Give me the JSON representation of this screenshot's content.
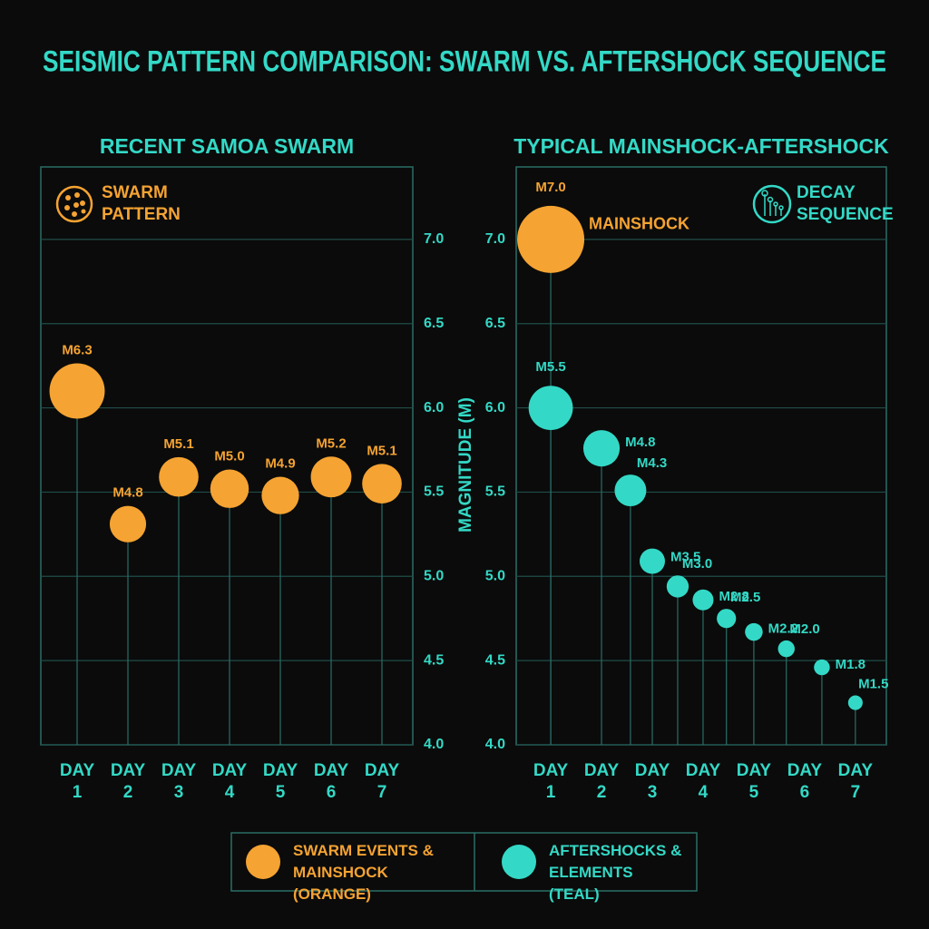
{
  "title": "SEISMIC PATTERN COMPARISON: SWARM VS. AFTERSHOCK SEQUENCE",
  "chart_data": [
    {
      "type": "bubble",
      "title": "RECENT SAMOA SWARM",
      "annotation": "SWARM PATTERN",
      "ylabel": "MAGNITUDE (M)",
      "y_axis_side": "right",
      "categories": [
        "DAY 1",
        "DAY 2",
        "DAY 3",
        "DAY 4",
        "DAY 5",
        "DAY 6",
        "DAY 7"
      ],
      "series": [
        {
          "name": "SWARM EVENTS & MAINSHOCK (ORANGE)",
          "color": "#f5a332",
          "values": [
            6.1,
            5.31,
            5.59,
            5.52,
            5.48,
            5.59,
            5.55
          ],
          "sizes": [
            6.3,
            4.8,
            5.1,
            5.0,
            4.9,
            5.2,
            5.1
          ],
          "value_labels": [
            "M6.3",
            "M4.8",
            "M5.1",
            "M5.0",
            "M4.9",
            "M5.2",
            "M5.1"
          ]
        }
      ],
      "ylim": [
        4.0,
        7.43
      ],
      "yticks": [
        {
          "value": 4,
          "label": "4.0"
        },
        4.5,
        {
          "value": 5,
          "label": "5.0"
        },
        5.5,
        {
          "value": 6,
          "label": "6.0"
        },
        6.5,
        {
          "value": 7,
          "label": "7.0"
        }
      ],
      "grid": true
    },
    {
      "type": "bubble",
      "title": "TYPICAL MAINSHOCK-AFTERSHOCK",
      "annotation": "DECAY SEQUENCE",
      "y_axis_side": "left",
      "series": [
        {
          "color": "#f5a332",
          "annotation": "MAINSHOCK",
          "x": [
            1
          ],
          "values": [
            7.0
          ],
          "sizes": [
            7.0
          ],
          "value_labels": [
            "M7.0"
          ]
        },
        {
          "name": "AFTERSHOCKS & ELEMENTS (TEAL)",
          "color": "#33d9c6",
          "x": [
            1,
            2,
            2.57,
            3,
            3.5,
            4,
            4.46,
            5,
            5.64,
            6.34,
            7
          ],
          "values": [
            6.0,
            5.76,
            5.51,
            5.09,
            4.94,
            4.86,
            4.75,
            4.67,
            4.57,
            4.46,
            4.25
          ],
          "sizes": [
            5.5,
            4.8,
            4.3,
            3.5,
            3.0,
            2.8,
            2.5,
            2.2,
            2.0,
            1.8,
            1.5
          ],
          "value_labels": [
            "M5.5",
            "M4.8",
            "M4.3",
            "M3.5",
            "M3.0",
            "M2.8",
            "M2.5",
            "M2.2",
            "M2.0",
            "M1.8",
            "M1.5"
          ]
        }
      ],
      "xlim": [
        0.32,
        7.61
      ],
      "xticks": [
        {
          "value": 1,
          "label": "DAY 1"
        },
        {
          "value": 2,
          "label": "DAY 2"
        },
        {
          "value": 3,
          "label": "DAY 3"
        },
        {
          "value": 4,
          "label": "DAY 4"
        },
        {
          "value": 5,
          "label": "DAY 5"
        },
        {
          "value": 6,
          "label": "DAY 6"
        },
        {
          "value": 7,
          "label": "DAY 7"
        }
      ],
      "ylim": [
        4.0,
        7.43
      ],
      "yticks": [
        {
          "value": 4,
          "label": "4.0"
        },
        4.5,
        {
          "value": 5,
          "label": "5.0"
        },
        5.5,
        {
          "value": 6,
          "label": "6.0"
        },
        6.5,
        {
          "value": 7,
          "label": "7.0"
        }
      ],
      "grid": true
    }
  ]
}
